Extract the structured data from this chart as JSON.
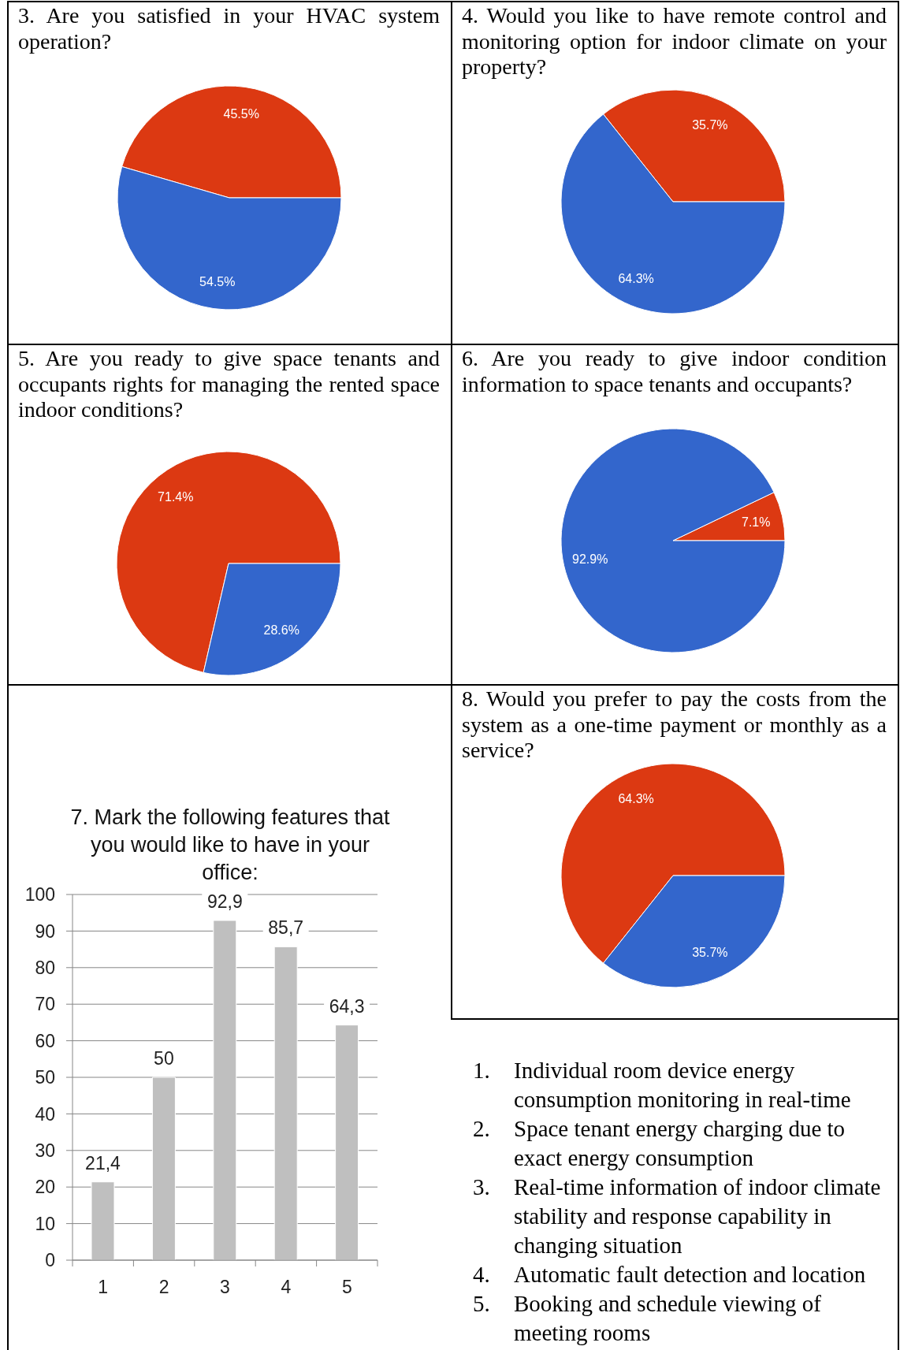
{
  "chart_data": [
    {
      "type": "pie",
      "title": "3. Are you satisfied in your HVAC system operation?",
      "categories": [
        null,
        null
      ],
      "values": [
        45.5,
        54.5
      ],
      "colors": [
        "#dc3912",
        "#3366cc"
      ],
      "value_labels": [
        "45.5%",
        "54.5%"
      ]
    },
    {
      "type": "pie",
      "title": "4. Would you like to have remote control and monitoring option for indoor climate on your property?",
      "categories": [
        null,
        null
      ],
      "values": [
        35.7,
        64.3
      ],
      "colors": [
        "#dc3912",
        "#3366cc"
      ],
      "value_labels": [
        "35.7%",
        "64.3%"
      ]
    },
    {
      "type": "pie",
      "title": "5. Are you ready to give space tenants and occupants rights for managing the rented space indoor conditions?",
      "categories": [
        null,
        null
      ],
      "values": [
        71.4,
        28.6
      ],
      "colors": [
        "#dc3912",
        "#3366cc"
      ],
      "value_labels": [
        "71.4%",
        "28.6%"
      ]
    },
    {
      "type": "pie",
      "title": "6. Are you ready to give indoor condition information to space tenants and occupants?",
      "categories": [
        null,
        null
      ],
      "values": [
        7.1,
        92.9
      ],
      "colors": [
        "#dc3912",
        "#3366cc"
      ],
      "value_labels": [
        "7.1%",
        "92.9%"
      ]
    },
    {
      "type": "bar",
      "title": "7. Mark the following features that you would like to have in your office:",
      "categories": [
        "1",
        "2",
        "3",
        "4",
        "5"
      ],
      "values": [
        21.4,
        50,
        92.9,
        85.7,
        64.3
      ],
      "color": "#bfbfbf",
      "value_labels": [
        "21,4",
        "50",
        "92,9",
        "85,7",
        "64,3"
      ],
      "ylim": [
        0,
        100
      ],
      "yticks": [
        0,
        10,
        20,
        30,
        40,
        50,
        60,
        70,
        80,
        90,
        100
      ],
      "grid": "y"
    },
    {
      "type": "pie",
      "title": "8. Would you prefer to pay the costs from the system as a one-time payment or monthly as a service?",
      "categories": [
        null,
        null
      ],
      "values": [
        64.3,
        35.7
      ],
      "colors": [
        "#dc3912",
        "#3366cc"
      ],
      "value_labels": [
        "64.3%",
        "35.7%"
      ]
    },
    {
      "type": "other",
      "annotations": [
        "1. Individual room device energy consumption monitoring in real-time",
        "2. Space tenant energy charging due to exact energy consumption",
        "3. Real-time information of indoor climate stability and response capability in changing situation",
        "4. Automatic fault detection and location",
        "5. Booking and schedule viewing of meeting rooms"
      ]
    }
  ]
}
